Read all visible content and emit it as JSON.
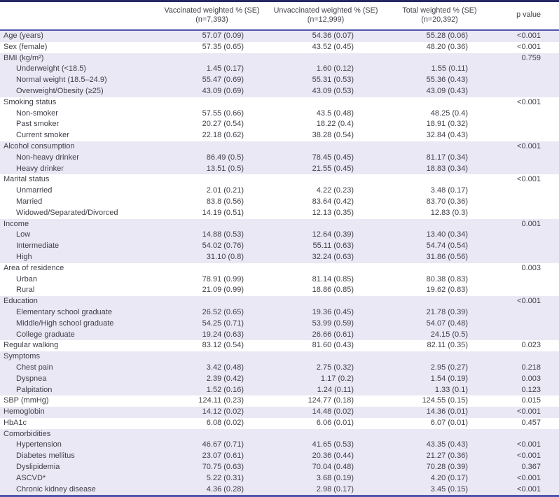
{
  "colors": {
    "stripe": "#e9e8f4",
    "top_border": "#252a63",
    "rule": "#5156a9",
    "text": "#403f48"
  },
  "table": {
    "columns": [
      {
        "line1": "Vaccinated weighted % (SE)",
        "line2": "(n=7,393)"
      },
      {
        "line1": "Unvaccinated weighted % (SE)",
        "line2": "(n=12,999)"
      },
      {
        "line1": "Total weighted % (SE)",
        "line2": "(n=20,392)"
      },
      {
        "line1": "p value",
        "line2": ""
      }
    ],
    "rows": [
      {
        "label": "Age (years)",
        "indent": false,
        "shaded": true,
        "vaccinated": "57.07 (0.09)",
        "unvaccinated": "54.36 (0.07)",
        "total": "55.28 (0.06)",
        "p": "<0.001"
      },
      {
        "label": "Sex (female)",
        "indent": false,
        "shaded": false,
        "vaccinated": "57.35 (0.65)",
        "unvaccinated": "43.52 (0.45)",
        "total": "48.20 (0.36)",
        "p": "<0.001"
      },
      {
        "label": "BMI (kg/m²)",
        "indent": false,
        "shaded": true,
        "vaccinated": "",
        "unvaccinated": "",
        "total": "",
        "p": "0.759"
      },
      {
        "label": "Underweight (<18.5)",
        "indent": true,
        "shaded": true,
        "vaccinated": "1.45 (0.17)",
        "unvaccinated": "1.60 (0.12)",
        "total": "1.55 (0.11)",
        "p": ""
      },
      {
        "label": "Normal weight (18.5–24.9)",
        "indent": true,
        "shaded": true,
        "vaccinated": "55.47 (0.69)",
        "unvaccinated": "55.31 (0.53)",
        "total": "55.36 (0.43)",
        "p": ""
      },
      {
        "label": "Overweight/Obesity (≥25)",
        "indent": true,
        "shaded": true,
        "vaccinated": "43.09 (0.69)",
        "unvaccinated": "43.09 (0.53)",
        "total": "43.09 (0.43)",
        "p": ""
      },
      {
        "label": "Smoking status",
        "indent": false,
        "shaded": false,
        "vaccinated": "",
        "unvaccinated": "",
        "total": "",
        "p": "<0.001"
      },
      {
        "label": "Non-smoker",
        "indent": true,
        "shaded": false,
        "vaccinated": "57.55 (0.66)",
        "unvaccinated": "43.5 (0.48)",
        "total": "48.25 (0.4)",
        "p": ""
      },
      {
        "label": "Past smoker",
        "indent": true,
        "shaded": false,
        "vaccinated": "20.27 (0.54)",
        "unvaccinated": "18.22 (0.4)",
        "total": "18.91 (0.32)",
        "p": ""
      },
      {
        "label": "Current smoker",
        "indent": true,
        "shaded": false,
        "vaccinated": "22.18 (0.62)",
        "unvaccinated": "38.28 (0.54)",
        "total": "32.84 (0.43)",
        "p": ""
      },
      {
        "label": "Alcohol consumption",
        "indent": false,
        "shaded": true,
        "vaccinated": "",
        "unvaccinated": "",
        "total": "",
        "p": "<0.001"
      },
      {
        "label": "Non-heavy drinker",
        "indent": true,
        "shaded": true,
        "vaccinated": "86.49 (0.5)",
        "unvaccinated": "78.45 (0.45)",
        "total": "81.17 (0.34)",
        "p": ""
      },
      {
        "label": "Heavy drinker",
        "indent": true,
        "shaded": true,
        "vaccinated": "13.51 (0.5)",
        "unvaccinated": "21.55 (0.45)",
        "total": "18.83 (0.34)",
        "p": ""
      },
      {
        "label": "Marital status",
        "indent": false,
        "shaded": false,
        "vaccinated": "",
        "unvaccinated": "",
        "total": "",
        "p": "<0.001"
      },
      {
        "label": "Unmarried",
        "indent": true,
        "shaded": false,
        "vaccinated": "2.01 (0.21)",
        "unvaccinated": "4.22 (0.23)",
        "total": "3.48 (0.17)",
        "p": ""
      },
      {
        "label": "Married",
        "indent": true,
        "shaded": false,
        "vaccinated": "83.8 (0.56)",
        "unvaccinated": "83.64 (0.42)",
        "total": "83.70 (0.36)",
        "p": ""
      },
      {
        "label": "Widowed/Separated/Divorced",
        "indent": true,
        "shaded": false,
        "vaccinated": "14.19 (0.51)",
        "unvaccinated": "12.13 (0.35)",
        "total": "12.83 (0.3)",
        "p": ""
      },
      {
        "label": "Income",
        "indent": false,
        "shaded": true,
        "vaccinated": "",
        "unvaccinated": "",
        "total": "",
        "p": "0.001"
      },
      {
        "label": "Low",
        "indent": true,
        "shaded": true,
        "vaccinated": "14.88 (0.53)",
        "unvaccinated": "12.64 (0.39)",
        "total": "13.40 (0.34)",
        "p": ""
      },
      {
        "label": "Intermediate",
        "indent": true,
        "shaded": true,
        "vaccinated": "54.02 (0.76)",
        "unvaccinated": "55.11 (0.63)",
        "total": "54.74 (0.54)",
        "p": ""
      },
      {
        "label": "High",
        "indent": true,
        "shaded": true,
        "vaccinated": "31.10 (0.8)",
        "unvaccinated": "32.24 (0.63)",
        "total": "31.86 (0.56)",
        "p": ""
      },
      {
        "label": "Area of residence",
        "indent": false,
        "shaded": false,
        "vaccinated": "",
        "unvaccinated": "",
        "total": "",
        "p": "0.003"
      },
      {
        "label": "Urban",
        "indent": true,
        "shaded": false,
        "vaccinated": "78.91 (0.99)",
        "unvaccinated": "81.14 (0.85)",
        "total": "80.38 (0.83)",
        "p": ""
      },
      {
        "label": "Rural",
        "indent": true,
        "shaded": false,
        "vaccinated": "21.09 (0.99)",
        "unvaccinated": "18.86 (0.85)",
        "total": "19.62 (0.83)",
        "p": ""
      },
      {
        "label": "Education",
        "indent": false,
        "shaded": true,
        "vaccinated": "",
        "unvaccinated": "",
        "total": "",
        "p": "<0.001"
      },
      {
        "label": "Elementary school graduate",
        "indent": true,
        "shaded": true,
        "vaccinated": "26.52 (0.65)",
        "unvaccinated": "19.36 (0.45)",
        "total": "21.78 (0.39)",
        "p": ""
      },
      {
        "label": "Middle/High school graduate",
        "indent": true,
        "shaded": true,
        "vaccinated": "54.25 (0.71)",
        "unvaccinated": "53.99 (0.59)",
        "total": "54.07 (0.48)",
        "p": ""
      },
      {
        "label": "College graduate",
        "indent": true,
        "shaded": true,
        "vaccinated": "19.24 (0.63)",
        "unvaccinated": "26.66 (0.61)",
        "total": "24.15 (0.5)",
        "p": ""
      },
      {
        "label": "Regular walking",
        "indent": false,
        "shaded": false,
        "vaccinated": "83.12 (0.54)",
        "unvaccinated": "81.60 (0.43)",
        "total": "82.11 (0.35)",
        "p": "0.023"
      },
      {
        "label": "Symptoms",
        "indent": false,
        "shaded": true,
        "vaccinated": "",
        "unvaccinated": "",
        "total": "",
        "p": ""
      },
      {
        "label": "Chest pain",
        "indent": true,
        "shaded": true,
        "vaccinated": "3.42 (0.48)",
        "unvaccinated": "2.75 (0.32)",
        "total": "2.95 (0.27)",
        "p": "0.218"
      },
      {
        "label": "Dyspnea",
        "indent": true,
        "shaded": true,
        "vaccinated": "2.39 (0.42)",
        "unvaccinated": "1.17 (0.2)",
        "total": "1.54 (0.19)",
        "p": "0.003"
      },
      {
        "label": "Palpitation",
        "indent": true,
        "shaded": true,
        "vaccinated": "1.52 (0.16)",
        "unvaccinated": "1.24 (0.11)",
        "total": "1.33 (0.1)",
        "p": "0.123"
      },
      {
        "label": "SBP (mmHg)",
        "indent": false,
        "shaded": false,
        "vaccinated": "124.11 (0.23)",
        "unvaccinated": "124.77 (0.18)",
        "total": "124.55 (0.15)",
        "p": "0.015"
      },
      {
        "label": "Hemoglobin",
        "indent": false,
        "shaded": true,
        "vaccinated": "14.12 (0.02)",
        "unvaccinated": "14.48 (0.02)",
        "total": "14.36 (0.01)",
        "p": "<0.001"
      },
      {
        "label": "HbA1c",
        "indent": false,
        "shaded": false,
        "vaccinated": "6.08 (0.02)",
        "unvaccinated": "6.06 (0.01)",
        "total": "6.07 (0.01)",
        "p": "0.457"
      },
      {
        "label": "Comorbidities",
        "indent": false,
        "shaded": true,
        "vaccinated": "",
        "unvaccinated": "",
        "total": "",
        "p": ""
      },
      {
        "label": "Hypertension",
        "indent": true,
        "shaded": true,
        "vaccinated": "46.67 (0.71)",
        "unvaccinated": "41.65 (0.53)",
        "total": "43.35 (0.43)",
        "p": "<0.001"
      },
      {
        "label": "Diabetes mellitus",
        "indent": true,
        "shaded": true,
        "vaccinated": "23.07 (0.61)",
        "unvaccinated": "20.36 (0.44)",
        "total": "21.27 (0.36)",
        "p": "<0.001"
      },
      {
        "label": "Dyslipidemia",
        "indent": true,
        "shaded": true,
        "vaccinated": "70.75 (0.63)",
        "unvaccinated": "70.04 (0.48)",
        "total": "70.28 (0.39)",
        "p": "0.367"
      },
      {
        "label": "ASCVD*",
        "indent": true,
        "shaded": true,
        "vaccinated": "5.22 (0.31)",
        "unvaccinated": "3.68 (0.19)",
        "total": "4.20 (0.17)",
        "p": "<0.001"
      },
      {
        "label": "Chronic kidney disease",
        "indent": true,
        "shaded": true,
        "vaccinated": "4.36 (0.28)",
        "unvaccinated": "2.98 (0.17)",
        "total": "3.45 (0.15)",
        "p": "<0.001"
      }
    ]
  }
}
